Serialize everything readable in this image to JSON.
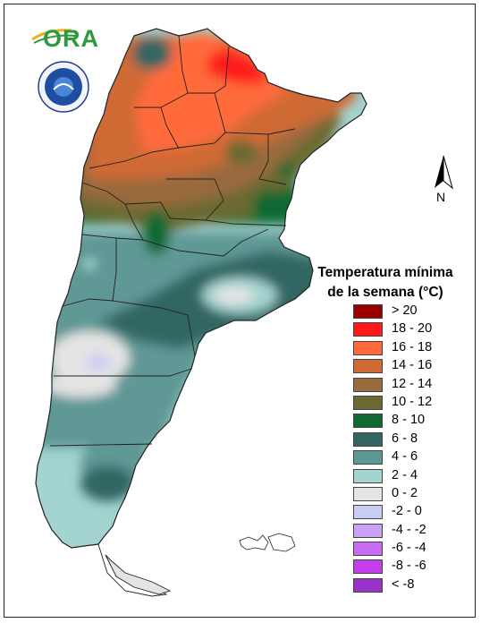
{
  "map": {
    "title_line1": "Temperatura mínima",
    "title_line2": "de la semana (°C)",
    "north_label": "N",
    "logo_text": "ORA",
    "legend": [
      {
        "label": "> 20",
        "color": "#9b0000"
      },
      {
        "label": "18 - 20",
        "color": "#ff1a1a"
      },
      {
        "label": "16 - 18",
        "color": "#ff6a3a"
      },
      {
        "label": "14 - 16",
        "color": "#cf6a35"
      },
      {
        "label": "12 - 14",
        "color": "#9a6b3c"
      },
      {
        "label": "10 - 12",
        "color": "#6b6a32"
      },
      {
        "label": "8 - 10",
        "color": "#0f6a30"
      },
      {
        "label": "6 - 8",
        "color": "#336663"
      },
      {
        "label": "4 - 6",
        "color": "#5e9895"
      },
      {
        "label": "2 - 4",
        "color": "#a3d4d0"
      },
      {
        "label": "0 - 2",
        "color": "#e4e4e4"
      },
      {
        "label": "-2 - 0",
        "color": "#c9cdf6"
      },
      {
        "label": "-4 - -2",
        "color": "#c9a2f6"
      },
      {
        "label": "-6 - -4",
        "color": "#c86cf2"
      },
      {
        "label": "-8 - -6",
        "color": "#c43fea"
      },
      {
        "label": "< -8",
        "color": "#9933cc"
      }
    ]
  }
}
